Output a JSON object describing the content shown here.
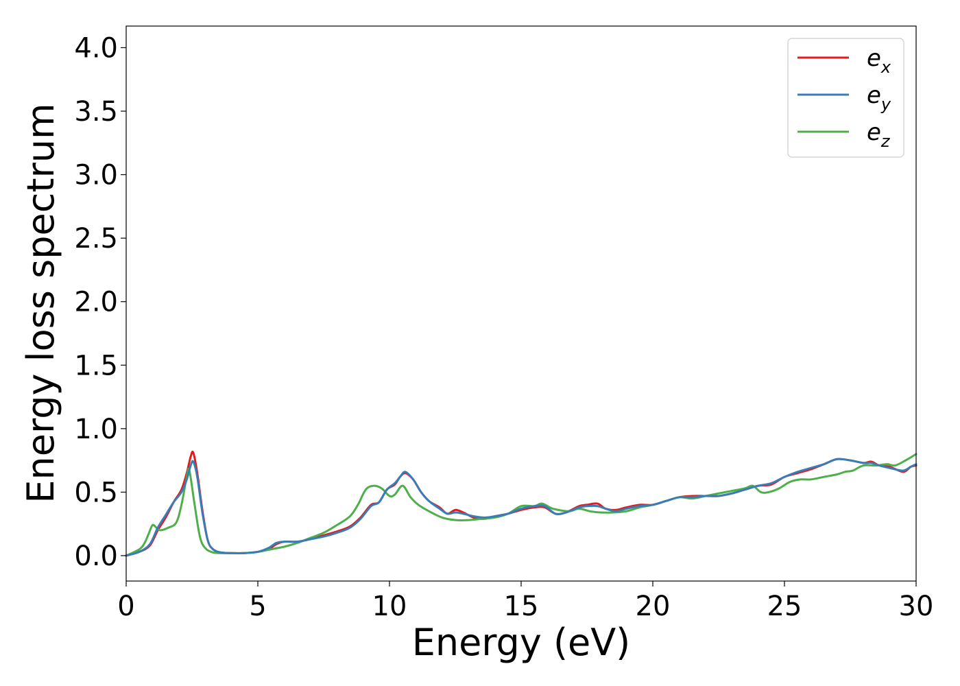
{
  "chart_data": {
    "type": "line",
    "xlabel": "Energy (eV)",
    "ylabel": "Energy loss spectrum",
    "xlim": [
      0,
      30
    ],
    "ylim": [
      -0.2,
      4.17
    ],
    "xticks": [
      0,
      5,
      10,
      15,
      20,
      25,
      30
    ],
    "xtick_labels": [
      "0",
      "5",
      "10",
      "15",
      "20",
      "25",
      "30"
    ],
    "yticks": [
      0.0,
      0.5,
      1.0,
      1.5,
      2.0,
      2.5,
      3.0,
      3.5,
      4.0
    ],
    "ytick_labels": [
      "0.0",
      "0.5",
      "1.0",
      "1.5",
      "2.0",
      "2.5",
      "3.0",
      "3.5",
      "4.0"
    ],
    "grid": false,
    "legend_position": "top-right",
    "series": [
      {
        "name": "e_x",
        "label_base": "e",
        "label_sub": "x",
        "color": "#e41a1c",
        "x": [
          0,
          0.5,
          0.9,
          1.2,
          1.5,
          1.8,
          2.1,
          2.3,
          2.45,
          2.55,
          2.7,
          2.9,
          3.1,
          3.3,
          3.6,
          4.0,
          4.5,
          5.0,
          5.4,
          5.7,
          6.0,
          6.5,
          7.0,
          7.5,
          8.0,
          8.5,
          8.9,
          9.3,
          9.6,
          9.9,
          10.2,
          10.4,
          10.6,
          10.9,
          11.2,
          11.5,
          11.9,
          12.2,
          12.5,
          12.8,
          13.2,
          13.6,
          14.0,
          14.5,
          15.0,
          15.5,
          15.9,
          16.3,
          16.7,
          17.2,
          17.5,
          17.9,
          18.2,
          18.6,
          19.0,
          19.5,
          20.0,
          20.5,
          21.0,
          21.5,
          22.0,
          22.5,
          23.0,
          23.5,
          24.0,
          24.5,
          25.0,
          25.5,
          26.0,
          26.5,
          27.0,
          27.5,
          28.0,
          28.3,
          28.6,
          29.0,
          29.5,
          29.8,
          30.0
        ],
        "y": [
          0.0,
          0.03,
          0.08,
          0.2,
          0.3,
          0.42,
          0.52,
          0.65,
          0.78,
          0.81,
          0.65,
          0.35,
          0.12,
          0.05,
          0.025,
          0.02,
          0.02,
          0.03,
          0.05,
          0.09,
          0.11,
          0.11,
          0.13,
          0.16,
          0.19,
          0.23,
          0.3,
          0.4,
          0.42,
          0.52,
          0.56,
          0.62,
          0.65,
          0.6,
          0.5,
          0.43,
          0.38,
          0.33,
          0.36,
          0.34,
          0.3,
          0.29,
          0.31,
          0.33,
          0.36,
          0.38,
          0.38,
          0.33,
          0.34,
          0.39,
          0.4,
          0.41,
          0.37,
          0.36,
          0.38,
          0.4,
          0.4,
          0.43,
          0.46,
          0.47,
          0.47,
          0.47,
          0.49,
          0.52,
          0.55,
          0.56,
          0.62,
          0.65,
          0.68,
          0.72,
          0.76,
          0.75,
          0.73,
          0.74,
          0.71,
          0.7,
          0.66,
          0.7,
          0.71
        ]
      },
      {
        "name": "e_y",
        "label_base": "e",
        "label_sub": "y",
        "color": "#377eb8",
        "x": [
          0,
          0.5,
          0.9,
          1.2,
          1.5,
          1.8,
          2.1,
          2.3,
          2.45,
          2.55,
          2.7,
          2.9,
          3.1,
          3.3,
          3.6,
          4.0,
          4.5,
          5.0,
          5.4,
          5.7,
          6.0,
          6.5,
          7.0,
          7.5,
          8.0,
          8.5,
          8.9,
          9.3,
          9.6,
          9.9,
          10.2,
          10.4,
          10.6,
          10.9,
          11.2,
          11.5,
          11.9,
          12.2,
          12.5,
          12.8,
          13.2,
          13.6,
          14.0,
          14.5,
          15.0,
          15.5,
          15.9,
          16.3,
          16.7,
          17.2,
          17.5,
          17.9,
          18.2,
          18.6,
          19.0,
          19.5,
          20.0,
          20.5,
          21.0,
          21.5,
          22.0,
          22.5,
          23.0,
          23.5,
          24.0,
          24.5,
          25.0,
          25.5,
          26.0,
          26.5,
          27.0,
          27.5,
          28.0,
          28.3,
          28.6,
          29.0,
          29.5,
          29.8,
          30.0
        ],
        "y": [
          0.0,
          0.03,
          0.09,
          0.22,
          0.32,
          0.42,
          0.5,
          0.6,
          0.71,
          0.74,
          0.62,
          0.33,
          0.12,
          0.05,
          0.025,
          0.02,
          0.02,
          0.03,
          0.06,
          0.1,
          0.11,
          0.11,
          0.13,
          0.15,
          0.18,
          0.22,
          0.29,
          0.39,
          0.42,
          0.52,
          0.57,
          0.62,
          0.66,
          0.6,
          0.5,
          0.43,
          0.37,
          0.33,
          0.34,
          0.33,
          0.31,
          0.3,
          0.31,
          0.33,
          0.37,
          0.39,
          0.39,
          0.33,
          0.34,
          0.38,
          0.39,
          0.39,
          0.37,
          0.35,
          0.37,
          0.39,
          0.4,
          0.43,
          0.46,
          0.46,
          0.47,
          0.47,
          0.49,
          0.52,
          0.55,
          0.57,
          0.62,
          0.66,
          0.69,
          0.72,
          0.76,
          0.75,
          0.73,
          0.73,
          0.71,
          0.69,
          0.67,
          0.7,
          0.72
        ]
      },
      {
        "name": "e_z",
        "label_base": "e",
        "label_sub": "z",
        "color": "#4daf4a",
        "x": [
          0,
          0.5,
          0.7,
          0.85,
          1.0,
          1.15,
          1.3,
          1.6,
          1.9,
          2.1,
          2.3,
          2.4,
          2.6,
          2.8,
          3.0,
          3.3,
          3.6,
          4.0,
          4.5,
          5.0,
          5.5,
          6.0,
          6.5,
          7.0,
          7.5,
          8.0,
          8.5,
          8.8,
          9.1,
          9.4,
          9.7,
          10.0,
          10.2,
          10.5,
          10.8,
          11.1,
          11.5,
          12.0,
          12.5,
          13.0,
          13.5,
          14.0,
          14.5,
          15.0,
          15.5,
          15.8,
          16.2,
          16.8,
          17.2,
          17.6,
          18.0,
          18.5,
          19.0,
          19.5,
          20.0,
          20.5,
          21.0,
          21.5,
          22.0,
          22.5,
          23.0,
          23.5,
          23.8,
          24.1,
          24.4,
          24.8,
          25.2,
          25.6,
          26.0,
          26.5,
          27.0,
          27.3,
          27.6,
          28.0,
          28.5,
          28.9,
          29.2,
          29.6,
          30.0
        ],
        "y": [
          0.0,
          0.05,
          0.1,
          0.17,
          0.24,
          0.22,
          0.2,
          0.22,
          0.26,
          0.4,
          0.62,
          0.67,
          0.4,
          0.15,
          0.06,
          0.025,
          0.02,
          0.02,
          0.02,
          0.03,
          0.05,
          0.07,
          0.1,
          0.14,
          0.18,
          0.24,
          0.31,
          0.4,
          0.52,
          0.55,
          0.53,
          0.47,
          0.48,
          0.55,
          0.46,
          0.4,
          0.35,
          0.3,
          0.28,
          0.28,
          0.29,
          0.3,
          0.33,
          0.39,
          0.39,
          0.41,
          0.37,
          0.35,
          0.37,
          0.35,
          0.34,
          0.34,
          0.35,
          0.38,
          0.4,
          0.43,
          0.46,
          0.45,
          0.47,
          0.49,
          0.51,
          0.53,
          0.55,
          0.5,
          0.5,
          0.53,
          0.58,
          0.6,
          0.6,
          0.62,
          0.64,
          0.66,
          0.67,
          0.71,
          0.71,
          0.72,
          0.71,
          0.75,
          0.8
        ]
      }
    ]
  }
}
